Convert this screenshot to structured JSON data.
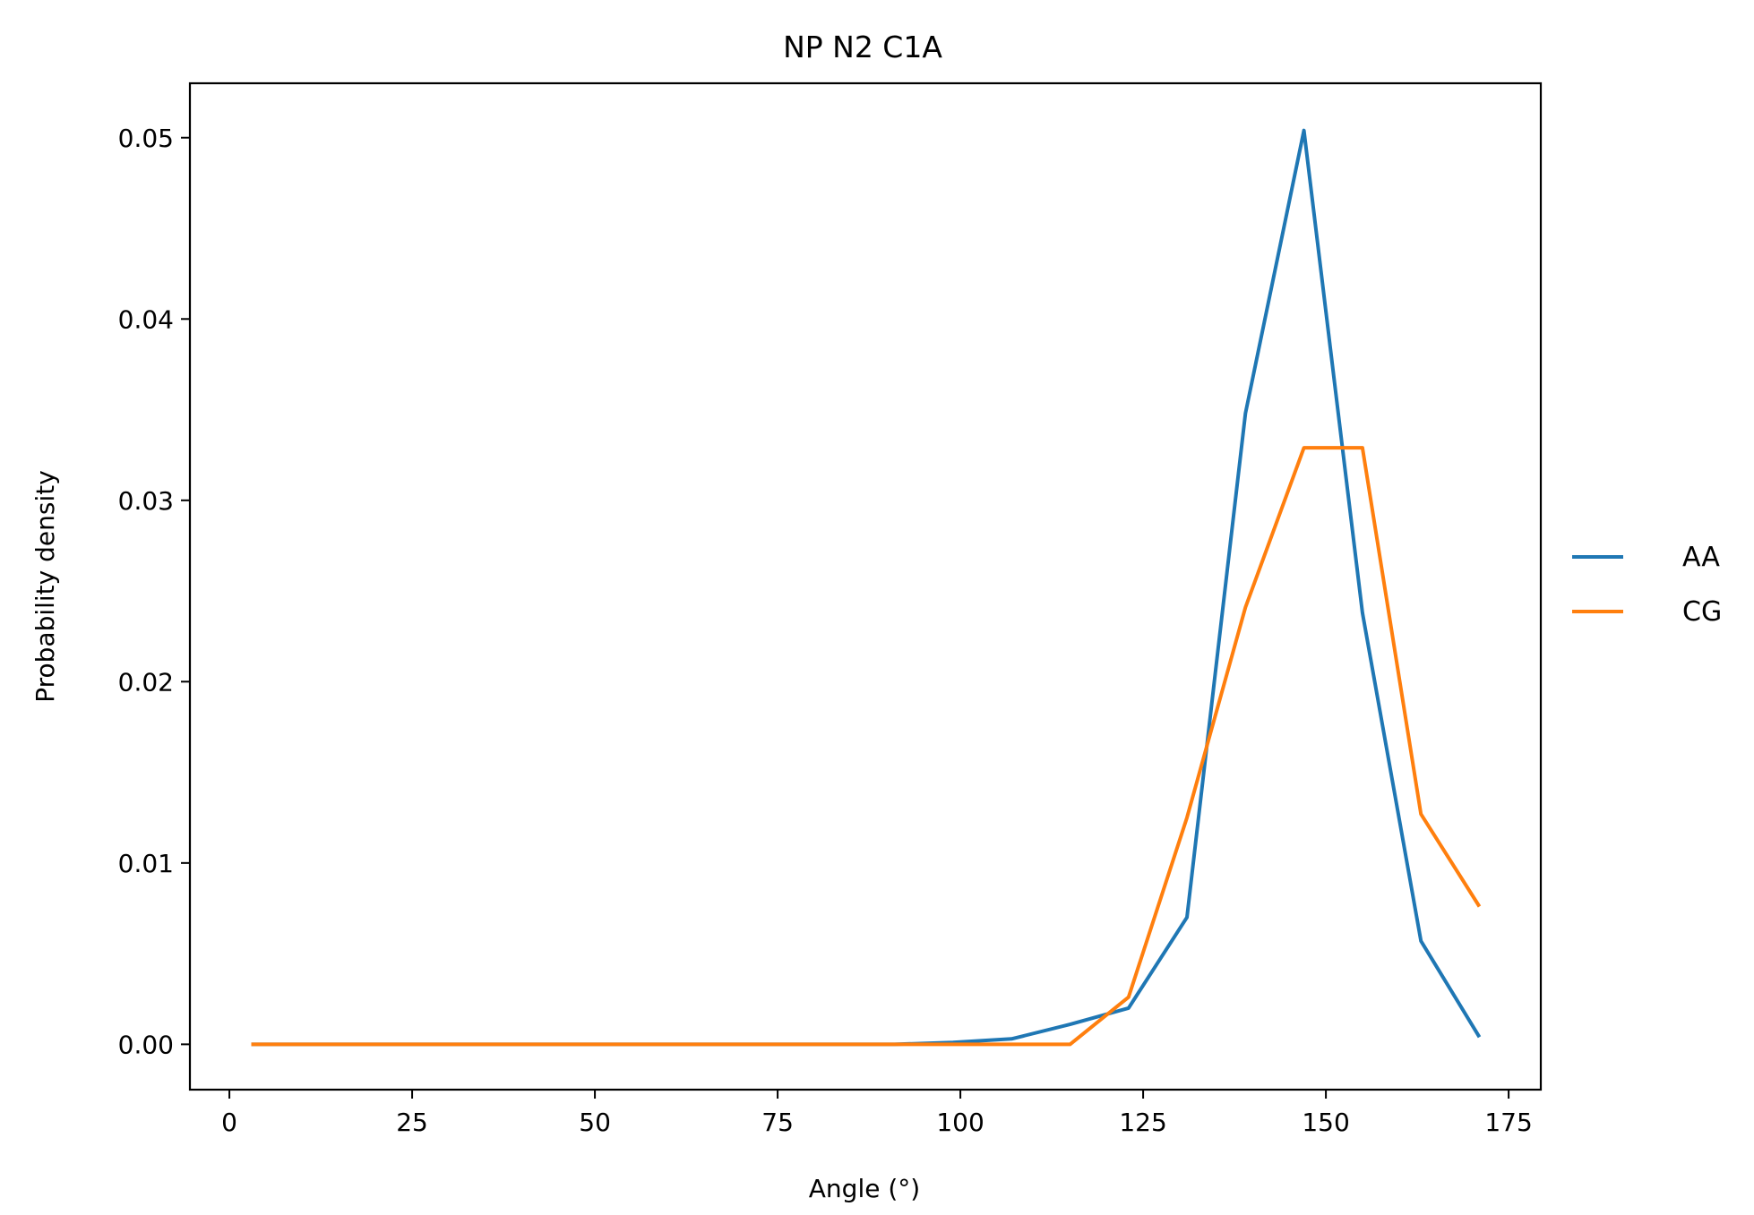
{
  "chart_data": {
    "type": "line",
    "title": "NP N2 C1A",
    "xlabel": "Angle (°)",
    "ylabel": "Probability density",
    "xlim": [
      -5.4,
      179.4
    ],
    "ylim": [
      -0.0025,
      0.053
    ],
    "xticks": [
      0,
      25,
      50,
      75,
      100,
      125,
      150,
      175
    ],
    "xtick_labels": [
      "0",
      "25",
      "50",
      "75",
      "100",
      "125",
      "150",
      "175"
    ],
    "yticks": [
      0,
      0.01,
      0.02,
      0.03,
      0.04,
      0.05
    ],
    "ytick_labels": [
      "0.00",
      "0.01",
      "0.02",
      "0.03",
      "0.04",
      "0.05"
    ],
    "grid": false,
    "legend_position": "outside-right",
    "x": [
      3,
      11,
      19,
      27,
      35,
      43,
      51,
      59,
      67,
      75,
      83,
      91,
      99,
      107,
      115,
      123,
      131,
      139,
      147,
      155,
      163,
      171
    ],
    "series": [
      {
        "name": "AA",
        "color": "#1f77b4",
        "values": [
          0,
          0,
          0,
          0,
          0,
          0,
          0,
          0,
          0,
          0,
          0,
          0,
          0.0001,
          0.0003,
          0.0011,
          0.002,
          0.007,
          0.0348,
          0.0504,
          0.0238,
          0.0057,
          0.0004
        ]
      },
      {
        "name": "CG",
        "color": "#ff7f0e",
        "values": [
          0,
          0,
          0,
          0,
          0,
          0,
          0,
          0,
          0,
          0,
          0,
          0,
          0,
          0,
          0,
          0.0026,
          0.0125,
          0.0241,
          0.0329,
          0.0329,
          0.0127,
          0.0076
        ]
      }
    ]
  }
}
